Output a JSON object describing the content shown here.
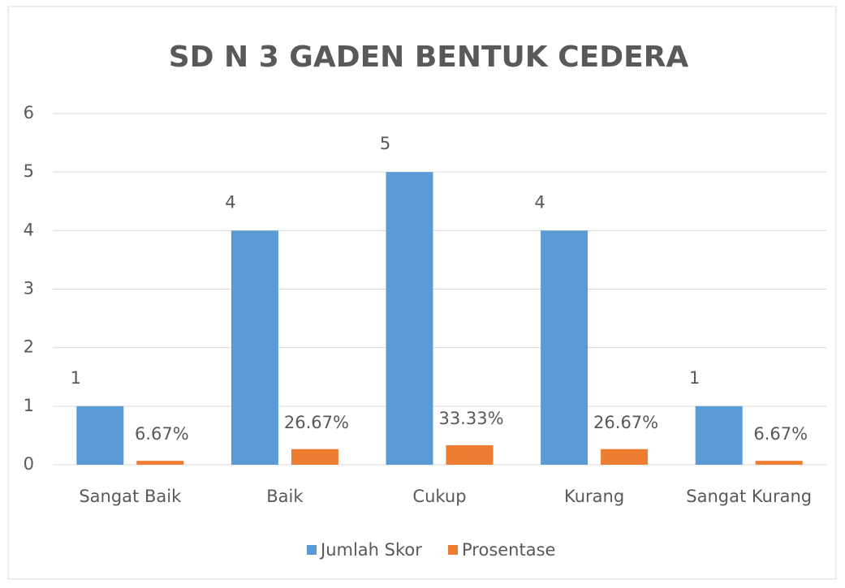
{
  "chart_data": {
    "type": "bar",
    "title": "SD N 3 GADEN BENTUK CEDERA",
    "categories": [
      "Sangat Baik",
      "Baik",
      "Cukup",
      "Kurang",
      "Sangat Kurang"
    ],
    "series": [
      {
        "name": "Jumlah Skor",
        "color": "#5b9bd5",
        "values": [
          1,
          4,
          5,
          4,
          1
        ]
      },
      {
        "name": "Prosentase",
        "color": "#ed7d31",
        "values": [
          0.0667,
          0.2667,
          0.3333,
          0.2667,
          0.0667
        ],
        "value_labels": [
          "6.67%",
          "26.67%",
          "33.33%",
          "26.67%",
          "6.67%"
        ]
      }
    ],
    "ylim": [
      0,
      6
    ],
    "yticks": [
      0,
      1,
      2,
      3,
      4,
      5,
      6
    ],
    "grid": true,
    "legend": "bottom"
  }
}
